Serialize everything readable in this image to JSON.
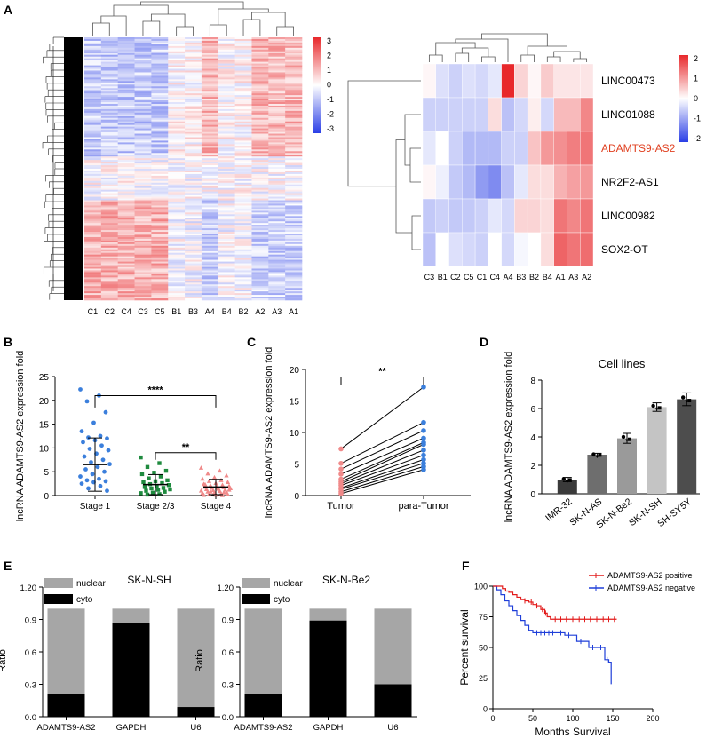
{
  "panel_letters": [
    "A",
    "B",
    "C",
    "D",
    "E",
    "F"
  ],
  "colors": {
    "high": "#e8282b",
    "mid": "#ffffff",
    "low": "#2a3ee6",
    "black": "#000000",
    "grey": "#a6a6a6",
    "green": "#1e8a3e",
    "blue": "#3b7fdc",
    "pink": "#f08a8a",
    "red_curve": "#e21b1b",
    "blue_curve": "#1f3fd9"
  },
  "heatmap_main": {
    "columns": [
      "C1",
      "C2",
      "C4",
      "C3",
      "C5",
      "B1",
      "B3",
      "A4",
      "B4",
      "B2",
      "A2",
      "A3",
      "A1"
    ],
    "colorbar_ticks": [
      "3",
      "2",
      "1",
      "0",
      "-1",
      "-2",
      "-3"
    ]
  },
  "heatmap_small": {
    "columns": [
      "C3",
      "B1",
      "C2",
      "C5",
      "C1",
      "C4",
      "A4",
      "B3",
      "B2",
      "B4",
      "A1",
      "A3",
      "A2"
    ],
    "rows": [
      "LINC00473",
      "LINC01088",
      "ADAMTS9-AS2",
      "NR2F2-AS1",
      "LINC00982",
      "SOX2-OT"
    ],
    "highlight_row": "ADAMTS9-AS2",
    "values": [
      [
        0.1,
        -0.4,
        -0.6,
        -0.4,
        -0.5,
        -0.3,
        2.6,
        0.5,
        0.1,
        0.6,
        0.3,
        0.3,
        0.3
      ],
      [
        -0.6,
        -0.6,
        -0.6,
        -0.6,
        -0.6,
        0.4,
        -0.8,
        -0.5,
        0.2,
        -0.5,
        0.8,
        0.8,
        1.4
      ],
      [
        -0.3,
        0.0,
        -0.6,
        -0.9,
        -0.9,
        -0.9,
        -0.6,
        -0.6,
        0.7,
        1.2,
        1.3,
        1.5,
        1.6
      ],
      [
        0.1,
        -0.2,
        -0.7,
        -0.9,
        -1.3,
        -1.5,
        -0.8,
        -0.3,
        0.4,
        0.4,
        0.9,
        1.1,
        1.2
      ],
      [
        -0.7,
        -0.6,
        -0.7,
        -0.7,
        -0.6,
        -0.3,
        -0.5,
        0.5,
        0.5,
        0.4,
        1.6,
        1.4,
        1.6
      ],
      [
        -0.8,
        0.0,
        -0.4,
        -0.5,
        -0.6,
        0.0,
        -0.5,
        -0.1,
        0.0,
        0.4,
        1.8,
        1.6,
        1.7
      ]
    ],
    "colorbar_ticks": [
      "2",
      "1",
      "0",
      "-1",
      "-2"
    ]
  },
  "panel_b": {
    "ylabel": "lncRNA ADAMTS9-AS2 expression fold",
    "yticks": [
      "0",
      "5",
      "10",
      "15",
      "20",
      "25"
    ],
    "ylim": [
      0,
      25
    ],
    "groups": [
      {
        "name": "Stage 1",
        "mean": 6.5,
        "sd": 5.6,
        "points": [
          22.3,
          21,
          19.8,
          17.5,
          15.3,
          13.5,
          12.5,
          12.2,
          12,
          11.6,
          11.2,
          10.5,
          9.8,
          9.5,
          8.8,
          8.2,
          7.5,
          7,
          6.6,
          6,
          5.5,
          5,
          4.5,
          4,
          3.5,
          3.2,
          3,
          2.8,
          2.5,
          2,
          1.5,
          1
        ]
      },
      {
        "name": "Stage 2/3",
        "mean": 2.3,
        "sd": 2.1,
        "points": [
          8,
          6.8,
          6,
          5.2,
          4.8,
          4.5,
          4,
          3.6,
          3.2,
          3,
          2.8,
          2.6,
          2.4,
          2.2,
          2,
          1.8,
          1.6,
          1.5,
          1.3,
          1.2,
          1,
          0.8,
          0.6,
          0.5,
          0.3,
          0.2
        ]
      },
      {
        "name": "Stage 4",
        "mean": 1.8,
        "sd": 1.6,
        "points": [
          5.8,
          5.2,
          4.6,
          4.2,
          3.8,
          3.5,
          3.2,
          3,
          2.8,
          2.6,
          2.4,
          2.2,
          2.1,
          2,
          1.9,
          1.8,
          1.7,
          1.6,
          1.5,
          1.4,
          1.3,
          1.2,
          1.1,
          1,
          0.9,
          0.8,
          0.7,
          0.6,
          0.5,
          0.4,
          0.3,
          0.2,
          0.15,
          0.1,
          0.05,
          0.8,
          1.2,
          1.6,
          2.3,
          0.6
        ]
      }
    ],
    "sig_top": "****",
    "sig_bottom": "**"
  },
  "panel_c": {
    "ylabel": "lncRNA ADAMTS9-AS2 expression fold",
    "yticks": [
      "0",
      "5",
      "10",
      "15",
      "20"
    ],
    "ylim": [
      0,
      20
    ],
    "categories": [
      "Tumor",
      "para-Tumor"
    ],
    "pairs": [
      [
        7.4,
        17.2
      ],
      [
        5.1,
        11.6
      ],
      [
        4.2,
        10.3
      ],
      [
        3.4,
        9.1
      ],
      [
        2.6,
        8.4
      ],
      [
        2.2,
        8.1
      ],
      [
        1.9,
        7.2
      ],
      [
        1.6,
        6.4
      ],
      [
        1.2,
        5.7
      ],
      [
        1.0,
        5.1
      ],
      [
        0.6,
        4.6
      ],
      [
        0.3,
        4.1
      ]
    ],
    "sig": "**"
  },
  "panel_d": {
    "title": "Cell lines",
    "ylabel": "lncRNA ADAMTS9-AS2 expression fold",
    "yticks": [
      "0",
      "2",
      "4",
      "6",
      "8"
    ],
    "ylim": [
      0,
      8
    ],
    "categories": [
      "IMR-32",
      "SK-N-AS",
      "SK-N-Be2",
      "SK-N-SH",
      "SH-SY5Y"
    ],
    "values": [
      1.0,
      2.75,
      3.9,
      6.1,
      6.65
    ],
    "errors": [
      0.15,
      0.1,
      0.35,
      0.3,
      0.45
    ],
    "bar_colors": [
      "#3a3a3a",
      "#6e6e6e",
      "#9a9a9a",
      "#c4c4c4",
      "#4d4d4d"
    ]
  },
  "panel_e": [
    {
      "title": "SK-N-SH",
      "ylabel": "Ratio",
      "yticks": [
        "0.0",
        "0.3",
        "0.6",
        "0.9",
        "1.20"
      ],
      "categories": [
        "ADAMTS9-AS2",
        "GAPDH",
        "U6"
      ],
      "cyto": [
        0.21,
        0.87,
        0.09
      ],
      "legend": [
        "nuclear",
        "cyto"
      ]
    },
    {
      "title": "SK-N-Be2",
      "ylabel": "Ratio",
      "yticks": [
        "0.0",
        "0.3",
        "0.6",
        "0.9",
        "1.20"
      ],
      "categories": [
        "ADAMTS9-AS2",
        "GAPDH",
        "U6"
      ],
      "cyto": [
        0.21,
        0.89,
        0.3
      ],
      "legend": [
        "nuclear",
        "cyto"
      ]
    }
  ],
  "panel_f": {
    "ylabel": "Percent survival",
    "xlabel": "Months Survival",
    "yticks": [
      "0",
      "25",
      "50",
      "75",
      "100"
    ],
    "xticks": [
      "0",
      "50",
      "100",
      "150",
      "200"
    ],
    "xlim": [
      0,
      200
    ],
    "ylim": [
      0,
      100
    ],
    "legend": [
      "ADAMTS9-AS2 positive",
      "ADAMTS9-AS2 negative"
    ],
    "positive": [
      [
        0,
        100
      ],
      [
        8,
        100
      ],
      [
        12,
        98
      ],
      [
        16,
        96
      ],
      [
        20,
        95
      ],
      [
        25,
        93
      ],
      [
        30,
        91
      ],
      [
        35,
        89
      ],
      [
        40,
        88
      ],
      [
        45,
        87
      ],
      [
        50,
        85
      ],
      [
        55,
        84
      ],
      [
        60,
        81
      ],
      [
        65,
        78
      ],
      [
        68,
        75
      ],
      [
        72,
        73
      ],
      [
        155,
        73
      ]
    ],
    "negative": [
      [
        0,
        100
      ],
      [
        5,
        97
      ],
      [
        10,
        93
      ],
      [
        15,
        88
      ],
      [
        20,
        84
      ],
      [
        25,
        80
      ],
      [
        30,
        76
      ],
      [
        35,
        72
      ],
      [
        40,
        68
      ],
      [
        45,
        64
      ],
      [
        50,
        62
      ],
      [
        80,
        62
      ],
      [
        90,
        60
      ],
      [
        105,
        55
      ],
      [
        120,
        50
      ],
      [
        140,
        40
      ],
      [
        145,
        38
      ],
      [
        148,
        20
      ]
    ],
    "pos_censor": [
      40,
      48,
      55,
      62,
      66,
      78,
      85,
      92,
      100,
      108,
      115,
      122,
      130,
      138,
      145,
      152
    ],
    "neg_censor": [
      55,
      60,
      65,
      70,
      75,
      85,
      95,
      110,
      125,
      135,
      143
    ]
  }
}
